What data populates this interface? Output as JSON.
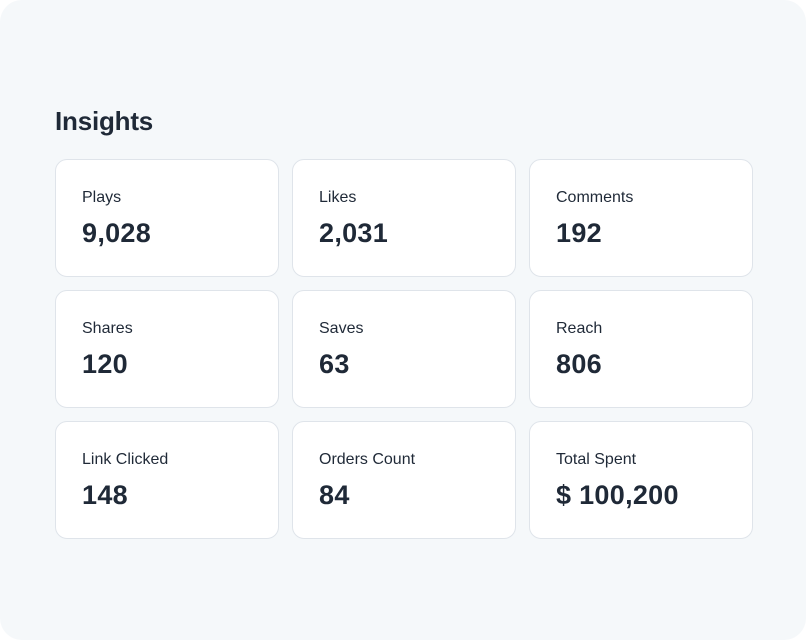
{
  "insights": {
    "title": "Insights",
    "cards": [
      {
        "label": "Plays",
        "value": "9,028"
      },
      {
        "label": "Likes",
        "value": "2,031"
      },
      {
        "label": "Comments",
        "value": "192"
      },
      {
        "label": "Shares",
        "value": "120"
      },
      {
        "label": "Saves",
        "value": "63"
      },
      {
        "label": "Reach",
        "value": "806"
      },
      {
        "label": "Link Clicked",
        "value": "148"
      },
      {
        "label": "Orders Count",
        "value": "84"
      },
      {
        "label": "Total Spent",
        "value": "$ 100,200"
      }
    ]
  }
}
